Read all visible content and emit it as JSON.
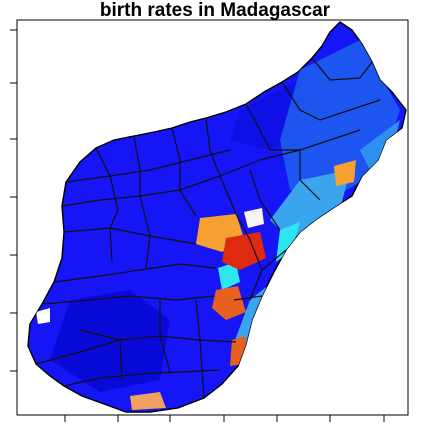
{
  "figure": {
    "title": "birth rates in Madagascar",
    "colors": {
      "background": "#ffffff",
      "frame": "#000000",
      "base_blue": "#1515f5",
      "deep_blue": "#0a0ad8",
      "mid_blue": "#1f7ef0",
      "light_blue": "#3aa4ee",
      "cyan": "#2ee6f0",
      "orange": "#f5a030",
      "red": "#e02a10",
      "border": "#111111"
    },
    "axes": {
      "left_ticks": 7,
      "bottom_ticks": 7
    }
  }
}
